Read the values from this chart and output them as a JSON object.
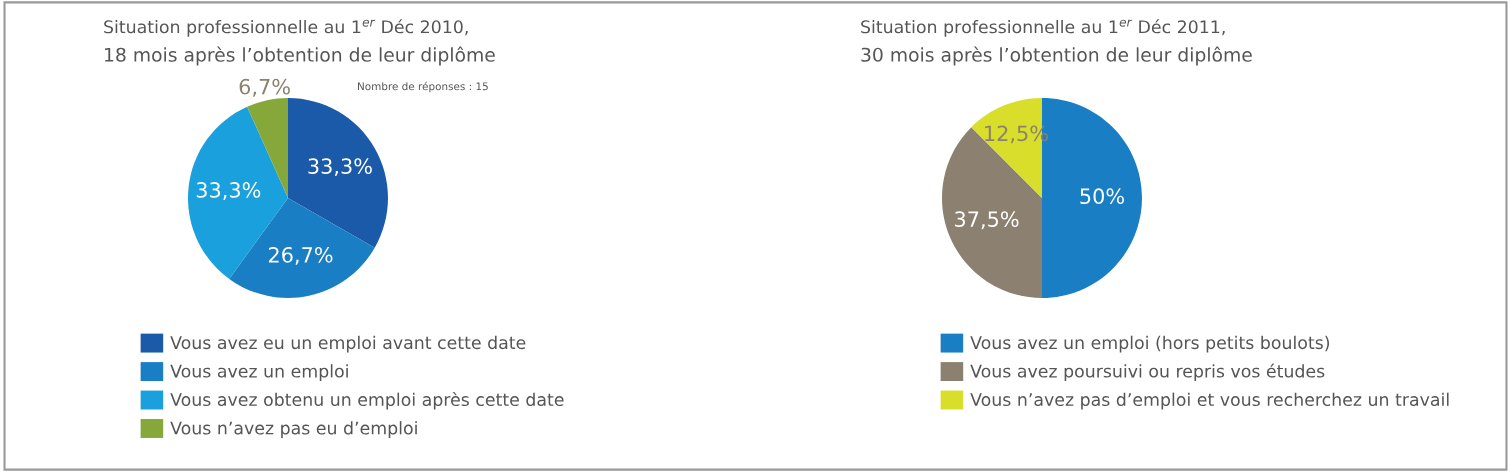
{
  "chart_data": [
    {
      "type": "pie",
      "title": "Situation professionnelle au 1$^{er}$ Déc 2010,",
      "subtitle": "18 mois après l’obtention de leur diplôme",
      "annotations": [
        "Nombre de réponses : 15"
      ],
      "categories": [
        "Vous avez eu un emploi avant cette date",
        "Vous avez un emploi",
        "Vous avez obtenu un emploi après cette date",
        "Vous n’avez pas eu d’emploi"
      ],
      "values": [
        33.3,
        26.7,
        33.3,
        6.7
      ],
      "value_labels": [
        "33,3%",
        "26,7%",
        "33,3%",
        "6,7%"
      ],
      "colors": [
        "#1a5aa8",
        "#1a7ec4",
        "#1aa0dc",
        "#86a83a"
      ],
      "legend": "bottom"
    },
    {
      "type": "pie",
      "title": "Situation professionnelle au 1$^{er}$ Déc 2011,",
      "subtitle": "30 mois après l’obtention de leur diplôme",
      "categories": [
        "Vous avez un emploi (hors petits boulots)",
        "Vous avez poursuivi ou repris vos études",
        "Vous n’avez pas d’emploi et vous recherchez un travail"
      ],
      "values": [
        50,
        37.5,
        12.5
      ],
      "value_labels": [
        "50%",
        "37,5%",
        "12,5%"
      ],
      "colors": [
        "#1a7ec4",
        "#8c8070",
        "#d8de2a"
      ],
      "legend": "bottom"
    }
  ]
}
